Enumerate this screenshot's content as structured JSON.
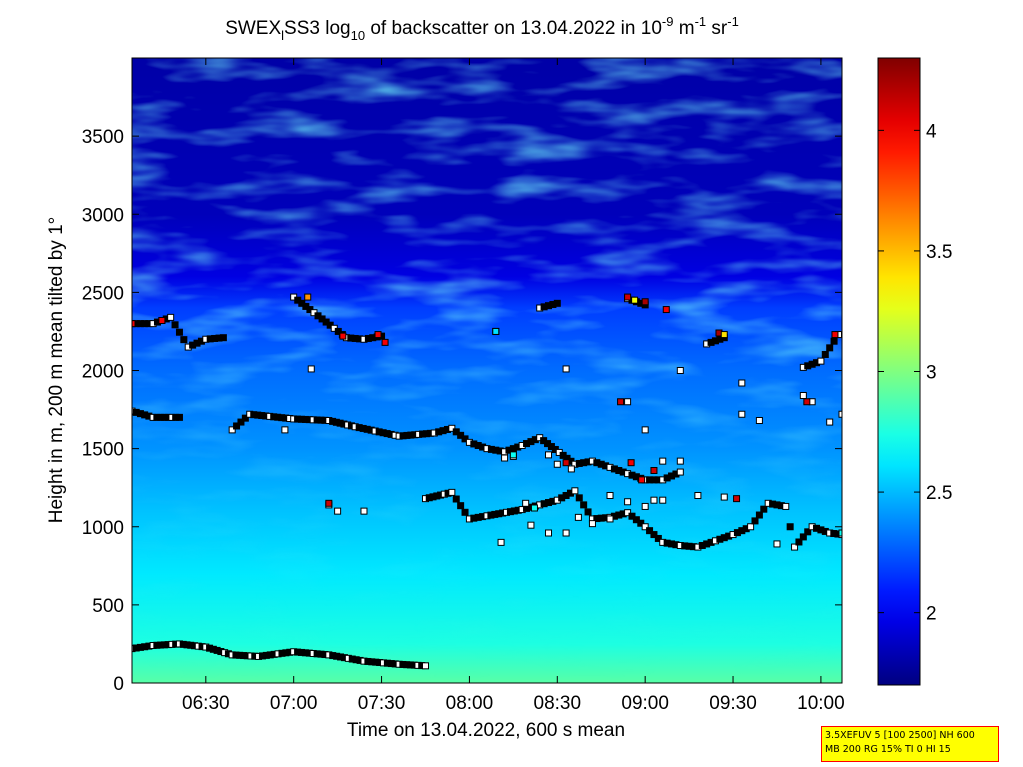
{
  "chart_data": {
    "type": "heatmap",
    "title": {
      "prefix": "SWEX",
      "sub1": "l",
      "mid": "SS3 log",
      "sub2": "10",
      "mid2": " of backscatter on 13.04.2022 in 10",
      "sup1": "-9",
      "unit1": " m",
      "sup2": "-1",
      "unit2": " sr",
      "sup3": "-1"
    },
    "xlabel": "Time on 13.04.2022, 600 s mean",
    "ylabel": "Height in m, 200 m mean tilted by 1°",
    "x_range_hours": [
      6.08,
      10.12
    ],
    "y_range_m": [
      0,
      4000
    ],
    "x_ticks": [
      {
        "label": "06:30",
        "hours": 6.5
      },
      {
        "label": "07:00",
        "hours": 7.0
      },
      {
        "label": "07:30",
        "hours": 7.5
      },
      {
        "label": "08:00",
        "hours": 8.0
      },
      {
        "label": "08:30",
        "hours": 8.5
      },
      {
        "label": "09:00",
        "hours": 9.0
      },
      {
        "label": "09:30",
        "hours": 9.5
      },
      {
        "label": "10:00",
        "hours": 10.0
      }
    ],
    "y_ticks": [
      0,
      500,
      1000,
      1500,
      2000,
      2500,
      3000,
      3500
    ],
    "colorbar": {
      "range": [
        1.7,
        4.3
      ],
      "ticks": [
        2,
        2.5,
        3,
        3.5,
        4
      ],
      "colormap": "jet"
    },
    "background_profile": [
      {
        "height": 0,
        "value": 2.9
      },
      {
        "height": 250,
        "value": 2.75
      },
      {
        "height": 700,
        "value": 2.62
      },
      {
        "height": 1100,
        "value": 2.52
      },
      {
        "height": 1500,
        "value": 2.4
      },
      {
        "height": 2000,
        "value": 2.3
      },
      {
        "height": 2400,
        "value": 2.18
      },
      {
        "height": 2600,
        "value": 1.95
      },
      {
        "height": 3000,
        "value": 1.85
      },
      {
        "height": 4000,
        "value": 1.8
      }
    ],
    "detection_layers": [
      {
        "name": "surface layer",
        "points": [
          [
            6.08,
            220
          ],
          [
            6.2,
            240
          ],
          [
            6.35,
            250
          ],
          [
            6.5,
            230
          ],
          [
            6.65,
            180
          ],
          [
            6.8,
            170
          ],
          [
            7.0,
            200
          ],
          [
            7.2,
            180
          ],
          [
            7.4,
            140
          ],
          [
            7.6,
            120
          ],
          [
            7.75,
            110
          ]
        ]
      },
      {
        "name": "layer ~1700 m",
        "points": [
          [
            6.08,
            1740
          ],
          [
            6.2,
            1700
          ],
          [
            6.35,
            1700
          ],
          [
            6.65,
            1620
          ],
          [
            6.75,
            1720
          ],
          [
            7.0,
            1690
          ],
          [
            7.2,
            1680
          ],
          [
            7.35,
            1640
          ],
          [
            7.6,
            1580
          ],
          [
            7.8,
            1600
          ],
          [
            7.9,
            1630
          ],
          [
            8.0,
            1540
          ],
          [
            8.1,
            1500
          ],
          [
            8.2,
            1480
          ],
          [
            8.3,
            1520
          ],
          [
            8.4,
            1570
          ],
          [
            8.6,
            1400
          ],
          [
            8.7,
            1420
          ],
          [
            8.8,
            1380
          ],
          [
            8.9,
            1340
          ],
          [
            9.0,
            1300
          ],
          [
            9.1,
            1300
          ],
          [
            9.2,
            1350
          ]
        ]
      },
      {
        "name": "layer ~1000 m",
        "points": [
          [
            7.75,
            1180
          ],
          [
            7.9,
            1220
          ],
          [
            8.0,
            1050
          ],
          [
            8.1,
            1070
          ],
          [
            8.3,
            1110
          ],
          [
            8.4,
            1140
          ],
          [
            8.5,
            1170
          ],
          [
            8.6,
            1230
          ],
          [
            8.7,
            1050
          ],
          [
            8.8,
            1060
          ],
          [
            8.9,
            1090
          ],
          [
            9.0,
            1000
          ],
          [
            9.1,
            900
          ],
          [
            9.2,
            880
          ],
          [
            9.3,
            870
          ],
          [
            9.4,
            910
          ],
          [
            9.5,
            950
          ],
          [
            9.6,
            1000
          ],
          [
            9.7,
            1150
          ],
          [
            9.8,
            1130
          ],
          [
            9.85,
            870
          ],
          [
            9.95,
            1000
          ],
          [
            10.05,
            960
          ],
          [
            10.12,
            950
          ]
        ]
      },
      {
        "name": "layer ~2200 m",
        "points": [
          [
            6.08,
            2300
          ],
          [
            6.2,
            2300
          ],
          [
            6.3,
            2340
          ],
          [
            6.4,
            2150
          ],
          [
            6.5,
            2200
          ],
          [
            6.6,
            2210
          ],
          [
            7.0,
            2470
          ],
          [
            7.3,
            2210
          ],
          [
            7.4,
            2200
          ],
          [
            7.5,
            2220
          ],
          [
            8.4,
            2400
          ],
          [
            8.5,
            2430
          ],
          [
            8.9,
            2460
          ],
          [
            9.0,
            2420
          ],
          [
            9.35,
            2170
          ],
          [
            9.45,
            2210
          ],
          [
            9.9,
            2020
          ],
          [
            10.0,
            2060
          ],
          [
            10.1,
            2230
          ]
        ]
      }
    ],
    "scattered_points": [
      [
        7.1,
        2010
      ],
      [
        8.15,
        2250
      ],
      [
        8.55,
        2010
      ],
      [
        9.2,
        2000
      ],
      [
        9.55,
        1920
      ],
      [
        9.9,
        1840
      ],
      [
        9.95,
        1800
      ],
      [
        10.05,
        1670
      ],
      [
        10.12,
        1720
      ],
      [
        6.95,
        1620
      ],
      [
        7.2,
        1140
      ],
      [
        7.25,
        1100
      ],
      [
        7.4,
        1100
      ],
      [
        8.2,
        1440
      ],
      [
        8.25,
        1450
      ],
      [
        8.45,
        1460
      ],
      [
        8.5,
        1400
      ],
      [
        8.58,
        1370
      ],
      [
        8.8,
        1200
      ],
      [
        8.9,
        1160
      ],
      [
        9.0,
        1130
      ],
      [
        9.1,
        1170
      ],
      [
        9.3,
        1200
      ],
      [
        9.45,
        1190
      ],
      [
        9.55,
        1720
      ],
      [
        9.65,
        1680
      ],
      [
        8.35,
        1010
      ],
      [
        8.45,
        960
      ],
      [
        8.55,
        960
      ],
      [
        8.7,
        1020
      ],
      [
        8.8,
        1050
      ],
      [
        9.05,
        1170
      ],
      [
        8.18,
        900
      ],
      [
        8.32,
        1150
      ],
      [
        8.62,
        1060
      ],
      [
        9.75,
        890
      ],
      [
        9.1,
        1420
      ],
      [
        9.2,
        1420
      ],
      [
        8.9,
        1800
      ],
      [
        9.0,
        1620
      ]
    ],
    "highlight_points": [
      {
        "h": 6.08,
        "y": 2300,
        "value": 4.0
      },
      {
        "h": 6.25,
        "y": 2320,
        "value": 4.0
      },
      {
        "h": 7.28,
        "y": 2220,
        "value": 4.0
      },
      {
        "h": 7.48,
        "y": 2230,
        "value": 4.0
      },
      {
        "h": 7.52,
        "y": 2180,
        "value": 4.0
      },
      {
        "h": 7.2,
        "y": 1150,
        "value": 4.1
      },
      {
        "h": 8.55,
        "y": 1410,
        "value": 4.1
      },
      {
        "h": 8.92,
        "y": 1410,
        "value": 4.0
      },
      {
        "h": 9.05,
        "y": 1360,
        "value": 4.1
      },
      {
        "h": 8.98,
        "y": 1300,
        "value": 4.0
      },
      {
        "h": 8.9,
        "y": 2470,
        "value": 4.1
      },
      {
        "h": 8.94,
        "y": 2450,
        "value": 3.3
      },
      {
        "h": 9.0,
        "y": 2440,
        "value": 4.2
      },
      {
        "h": 9.12,
        "y": 2390,
        "value": 4.0
      },
      {
        "h": 9.42,
        "y": 2240,
        "value": 4.2
      },
      {
        "h": 9.45,
        "y": 2230,
        "value": 3.4
      },
      {
        "h": 9.52,
        "y": 1180,
        "value": 4.1
      },
      {
        "h": 10.08,
        "y": 2230,
        "value": 4.0
      },
      {
        "h": 9.92,
        "y": 1800,
        "value": 4.1
      },
      {
        "h": 8.86,
        "y": 1800,
        "value": 4.1
      },
      {
        "h": 7.08,
        "y": 2470,
        "value": 3.6
      },
      {
        "h": 8.15,
        "y": 2250,
        "value": 2.6
      },
      {
        "h": 8.25,
        "y": 1460,
        "value": 2.7
      },
      {
        "h": 8.37,
        "y": 1120,
        "value": 2.7
      },
      {
        "h": 10.12,
        "y": 960,
        "value": 2.7
      }
    ]
  },
  "info_box": {
    "line1": "3.5XEFUV 5 [100 2500] NH 600",
    "line2": "MB 200 RG 15% TI 0 HI 15"
  }
}
